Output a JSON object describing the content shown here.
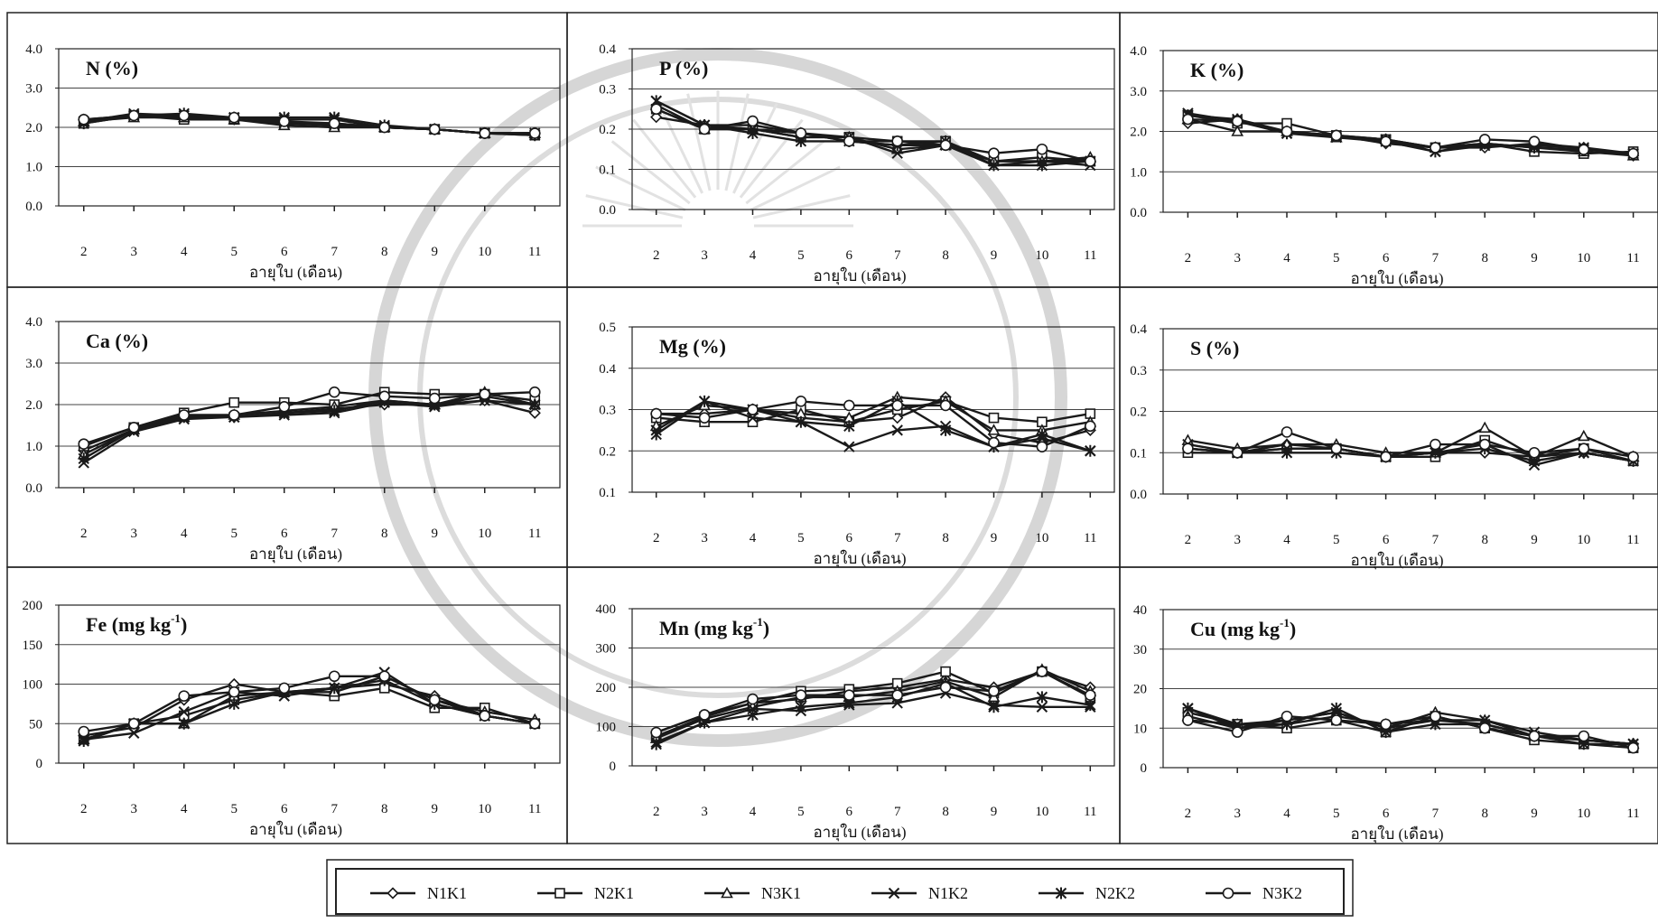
{
  "figure": {
    "x_label": "อายุใบ (เดือน)",
    "legend": [
      "N1K1",
      "N2K1",
      "N3K1",
      "N1K2",
      "N2K2",
      "N3K2"
    ],
    "legend_markers": [
      "diamond",
      "square",
      "triangle",
      "x",
      "star",
      "circle"
    ]
  },
  "chart_data": [
    {
      "type": "line",
      "title": "N (%)",
      "xlabel": "อายุใบ (เดือน)",
      "ylabel": "",
      "x": [
        2,
        3,
        4,
        5,
        6,
        7,
        8,
        9,
        10,
        11
      ],
      "ylim": [
        0,
        4
      ],
      "y_ticks": [
        "0.0",
        "1.0",
        "2.0",
        "3.0",
        "4.0"
      ],
      "series": [
        {
          "name": "N1K1",
          "values": [
            2.2,
            2.3,
            2.3,
            2.2,
            2.1,
            2.1,
            2.0,
            1.95,
            1.85,
            1.85
          ]
        },
        {
          "name": "N2K1",
          "values": [
            2.1,
            2.3,
            2.2,
            2.2,
            2.1,
            2.05,
            2.0,
            1.95,
            1.85,
            1.8
          ]
        },
        {
          "name": "N3K1",
          "values": [
            2.15,
            2.25,
            2.25,
            2.2,
            2.05,
            2.0,
            2.0,
            1.95,
            1.85,
            1.85
          ]
        },
        {
          "name": "N1K2",
          "values": [
            2.15,
            2.35,
            2.3,
            2.25,
            2.2,
            2.2,
            2.0,
            1.95,
            1.85,
            1.85
          ]
        },
        {
          "name": "N2K2",
          "values": [
            2.1,
            2.3,
            2.35,
            2.25,
            2.25,
            2.25,
            2.05,
            1.95,
            1.85,
            1.8
          ]
        },
        {
          "name": "N3K2",
          "values": [
            2.2,
            2.3,
            2.3,
            2.25,
            2.15,
            2.1,
            2.0,
            1.95,
            1.85,
            1.85
          ]
        }
      ]
    },
    {
      "type": "line",
      "title": "P (%)",
      "xlabel": "อายุใบ (เดือน)",
      "ylabel": "",
      "x": [
        2,
        3,
        4,
        5,
        6,
        7,
        8,
        9,
        10,
        11
      ],
      "ylim": [
        0,
        0.4
      ],
      "y_ticks": [
        "0.0",
        "0.1",
        "0.2",
        "0.3",
        "0.4"
      ],
      "series": [
        {
          "name": "N1K1",
          "values": [
            0.23,
            0.21,
            0.21,
            0.19,
            0.17,
            0.16,
            0.16,
            0.12,
            0.12,
            0.12
          ]
        },
        {
          "name": "N2K1",
          "values": [
            0.25,
            0.2,
            0.2,
            0.18,
            0.18,
            0.17,
            0.17,
            0.12,
            0.13,
            0.12
          ]
        },
        {
          "name": "N3K1",
          "values": [
            0.26,
            0.2,
            0.2,
            0.19,
            0.18,
            0.15,
            0.16,
            0.12,
            0.12,
            0.13
          ]
        },
        {
          "name": "N1K2",
          "values": [
            0.27,
            0.21,
            0.2,
            0.18,
            0.18,
            0.14,
            0.16,
            0.11,
            0.12,
            0.11
          ]
        },
        {
          "name": "N2K2",
          "values": [
            0.27,
            0.21,
            0.19,
            0.17,
            0.17,
            0.16,
            0.17,
            0.11,
            0.11,
            0.12
          ]
        },
        {
          "name": "N3K2",
          "values": [
            0.25,
            0.2,
            0.22,
            0.19,
            0.17,
            0.17,
            0.16,
            0.14,
            0.15,
            0.12
          ]
        }
      ]
    },
    {
      "type": "line",
      "title": "K (%)",
      "xlabel": "อายุใบ (เดือน)",
      "ylabel": "",
      "x": [
        2,
        3,
        4,
        5,
        6,
        7,
        8,
        9,
        10,
        11
      ],
      "ylim": [
        0,
        4
      ],
      "y_ticks": [
        "0.0",
        "1.0",
        "2.0",
        "3.0",
        "4.0"
      ],
      "series": [
        {
          "name": "N1K1",
          "values": [
            2.2,
            2.3,
            2.0,
            1.9,
            1.7,
            1.6,
            1.6,
            1.7,
            1.6,
            1.4
          ]
        },
        {
          "name": "N2K1",
          "values": [
            2.4,
            2.2,
            2.2,
            1.9,
            1.8,
            1.6,
            1.7,
            1.5,
            1.45,
            1.5
          ]
        },
        {
          "name": "N3K1",
          "values": [
            2.3,
            2.0,
            2.0,
            1.85,
            1.8,
            1.6,
            1.7,
            1.6,
            1.5,
            1.4
          ]
        },
        {
          "name": "N1K2",
          "values": [
            2.45,
            2.25,
            1.95,
            1.85,
            1.75,
            1.5,
            1.65,
            1.65,
            1.6,
            1.45
          ]
        },
        {
          "name": "N2K2",
          "values": [
            2.4,
            2.3,
            1.95,
            1.9,
            1.8,
            1.5,
            1.7,
            1.6,
            1.55,
            1.45
          ]
        },
        {
          "name": "N3K2",
          "values": [
            2.3,
            2.25,
            2.0,
            1.9,
            1.75,
            1.6,
            1.8,
            1.75,
            1.55,
            1.45
          ]
        }
      ]
    },
    {
      "type": "line",
      "title": "Ca (%)",
      "xlabel": "อายุใบ (เดือน)",
      "ylabel": "",
      "x": [
        2,
        3,
        4,
        5,
        6,
        7,
        8,
        9,
        10,
        11
      ],
      "ylim": [
        0,
        4
      ],
      "y_ticks": [
        "0.0",
        "1.0",
        "2.0",
        "3.0",
        "4.0"
      ],
      "series": [
        {
          "name": "N1K1",
          "values": [
            0.9,
            1.4,
            1.7,
            1.7,
            1.8,
            1.9,
            2.0,
            2.0,
            2.1,
            1.8
          ]
        },
        {
          "name": "N2K1",
          "values": [
            1.0,
            1.45,
            1.8,
            2.05,
            2.05,
            2.0,
            2.3,
            2.25,
            2.25,
            2.1
          ]
        },
        {
          "name": "N3K1",
          "values": [
            0.8,
            1.4,
            1.7,
            1.75,
            1.85,
            1.95,
            2.1,
            2.0,
            2.3,
            2.0
          ]
        },
        {
          "name": "N1K2",
          "values": [
            0.6,
            1.35,
            1.65,
            1.7,
            1.75,
            1.8,
            2.05,
            1.95,
            2.1,
            2.0
          ]
        },
        {
          "name": "N2K2",
          "values": [
            0.7,
            1.4,
            1.7,
            1.7,
            1.8,
            1.85,
            2.1,
            2.0,
            2.2,
            2.0
          ]
        },
        {
          "name": "N3K2",
          "values": [
            1.05,
            1.45,
            1.75,
            1.75,
            1.95,
            2.3,
            2.2,
            2.15,
            2.25,
            2.3
          ]
        }
      ]
    },
    {
      "type": "line",
      "title": "Mg (%)",
      "xlabel": "อายุใบ (เดือน)",
      "ylabel": "",
      "x": [
        2,
        3,
        4,
        5,
        6,
        7,
        8,
        9,
        10,
        11
      ],
      "ylim": [
        0.1,
        0.5
      ],
      "y_ticks": [
        "0.1",
        "0.2",
        "0.3",
        "0.4",
        "0.5"
      ],
      "series": [
        {
          "name": "N1K1",
          "values": [
            0.29,
            0.29,
            0.3,
            0.28,
            0.27,
            0.28,
            0.33,
            0.24,
            0.22,
            0.25
          ]
        },
        {
          "name": "N2K1",
          "values": [
            0.28,
            0.27,
            0.27,
            0.3,
            0.27,
            0.3,
            0.32,
            0.28,
            0.27,
            0.29
          ]
        },
        {
          "name": "N3K1",
          "values": [
            0.26,
            0.31,
            0.3,
            0.29,
            0.28,
            0.33,
            0.32,
            0.25,
            0.25,
            0.27
          ]
        },
        {
          "name": "N1K2",
          "values": [
            0.25,
            0.32,
            0.28,
            0.27,
            0.21,
            0.25,
            0.26,
            0.21,
            0.23,
            0.2
          ]
        },
        {
          "name": "N2K2",
          "values": [
            0.24,
            0.32,
            0.3,
            0.27,
            0.26,
            0.32,
            0.25,
            0.21,
            0.24,
            0.2
          ]
        },
        {
          "name": "N3K2",
          "values": [
            0.29,
            0.28,
            0.3,
            0.32,
            0.31,
            0.31,
            0.31,
            0.22,
            0.21,
            0.26
          ]
        }
      ]
    },
    {
      "type": "line",
      "title": "S (%)",
      "xlabel": "อายุใบ (เดือน)",
      "ylabel": "",
      "x": [
        2,
        3,
        4,
        5,
        6,
        7,
        8,
        9,
        10,
        11
      ],
      "ylim": [
        0,
        0.4
      ],
      "y_ticks": [
        "0.0",
        "0.1",
        "0.2",
        "0.3",
        "0.4"
      ],
      "series": [
        {
          "name": "N1K1",
          "values": [
            0.11,
            0.1,
            0.12,
            0.11,
            0.09,
            0.1,
            0.1,
            0.09,
            0.1,
            0.08
          ]
        },
        {
          "name": "N2K1",
          "values": [
            0.1,
            0.1,
            0.11,
            0.11,
            0.09,
            0.09,
            0.13,
            0.09,
            0.11,
            0.08
          ]
        },
        {
          "name": "N3K1",
          "values": [
            0.13,
            0.11,
            0.12,
            0.12,
            0.1,
            0.1,
            0.16,
            0.09,
            0.14,
            0.09
          ]
        },
        {
          "name": "N1K2",
          "values": [
            0.12,
            0.1,
            0.11,
            0.11,
            0.09,
            0.1,
            0.12,
            0.07,
            0.1,
            0.08
          ]
        },
        {
          "name": "N2K2",
          "values": [
            0.11,
            0.1,
            0.1,
            0.1,
            0.09,
            0.1,
            0.11,
            0.08,
            0.1,
            0.08
          ]
        },
        {
          "name": "N3K2",
          "values": [
            0.11,
            0.1,
            0.15,
            0.11,
            0.09,
            0.12,
            0.12,
            0.1,
            0.11,
            0.09
          ]
        }
      ]
    },
    {
      "type": "line",
      "title": "Fe (mg kg",
      "title_superscript": "-1",
      "title_suffix": ")",
      "xlabel": "อายุใบ (เดือน)",
      "ylabel": "",
      "x": [
        2,
        3,
        4,
        5,
        6,
        7,
        8,
        9,
        10,
        11
      ],
      "ylim": [
        0,
        200
      ],
      "y_ticks": [
        "0",
        "50",
        "100",
        "150",
        "200"
      ],
      "series": [
        {
          "name": "N1K1",
          "values": [
            35,
            45,
            80,
            100,
            90,
            95,
            100,
            85,
            60,
            50
          ]
        },
        {
          "name": "N2K1",
          "values": [
            30,
            50,
            60,
            80,
            90,
            85,
            95,
            70,
            70,
            50
          ]
        },
        {
          "name": "N3K1",
          "values": [
            30,
            50,
            50,
            85,
            90,
            90,
            110,
            80,
            65,
            55
          ]
        },
        {
          "name": "N1K2",
          "values": [
            30,
            38,
            65,
            90,
            85,
            95,
            115,
            75,
            60,
            50
          ]
        },
        {
          "name": "N2K2",
          "values": [
            28,
            50,
            50,
            75,
            90,
            95,
            105,
            75,
            60,
            50
          ]
        },
        {
          "name": "N3K2",
          "values": [
            40,
            50,
            85,
            90,
            95,
            110,
            110,
            80,
            60,
            50
          ]
        }
      ]
    },
    {
      "type": "line",
      "title": "Mn (mg kg",
      "title_superscript": "-1",
      "title_suffix": ")",
      "xlabel": "อายุใบ (เดือน)",
      "ylabel": "",
      "x": [
        2,
        3,
        4,
        5,
        6,
        7,
        8,
        9,
        10,
        11
      ],
      "ylim": [
        0,
        400
      ],
      "y_ticks": [
        "0",
        "100",
        "200",
        "300",
        "400"
      ],
      "series": [
        {
          "name": "N1K1",
          "values": [
            85,
            130,
            160,
            170,
            190,
            200,
            220,
            200,
            240,
            200
          ]
        },
        {
          "name": "N2K1",
          "values": [
            75,
            125,
            160,
            190,
            195,
            210,
            240,
            185,
            240,
            175
          ]
        },
        {
          "name": "N3K1",
          "values": [
            70,
            120,
            150,
            175,
            175,
            190,
            215,
            175,
            245,
            190
          ]
        },
        {
          "name": "N1K2",
          "values": [
            60,
            110,
            145,
            140,
            155,
            160,
            185,
            155,
            150,
            150
          ]
        },
        {
          "name": "N2K2",
          "values": [
            55,
            110,
            130,
            150,
            160,
            175,
            210,
            150,
            175,
            155
          ]
        },
        {
          "name": "N3K2",
          "values": [
            85,
            130,
            170,
            180,
            180,
            180,
            200,
            190,
            240,
            180
          ]
        }
      ]
    },
    {
      "type": "line",
      "title": "Cu (mg kg",
      "title_superscript": "-1",
      "title_suffix": ")",
      "xlabel": "อายุใบ (เดือน)",
      "ylabel": "",
      "x": [
        2,
        3,
        4,
        5,
        6,
        7,
        8,
        9,
        10,
        11
      ],
      "ylim": [
        0,
        40
      ],
      "y_ticks": [
        "0",
        "10",
        "20",
        "30",
        "40"
      ],
      "series": [
        {
          "name": "N1K1",
          "values": [
            12,
            11,
            11,
            13,
            11,
            12,
            11,
            8,
            7,
            6
          ]
        },
        {
          "name": "N2K1",
          "values": [
            14,
            11,
            10,
            12,
            9,
            13,
            10,
            7,
            6,
            5
          ]
        },
        {
          "name": "N3K1",
          "values": [
            13,
            10,
            12,
            14,
            10,
            14,
            12,
            8,
            7,
            6
          ]
        },
        {
          "name": "N1K2",
          "values": [
            15,
            11,
            12,
            14,
            10,
            12,
            12,
            9,
            7,
            6
          ]
        },
        {
          "name": "N2K2",
          "values": [
            15,
            10,
            11,
            15,
            9,
            11,
            11,
            8,
            6,
            6
          ]
        },
        {
          "name": "N3K2",
          "values": [
            12,
            9,
            13,
            12,
            11,
            13,
            10,
            8,
            8,
            5
          ]
        }
      ]
    }
  ]
}
